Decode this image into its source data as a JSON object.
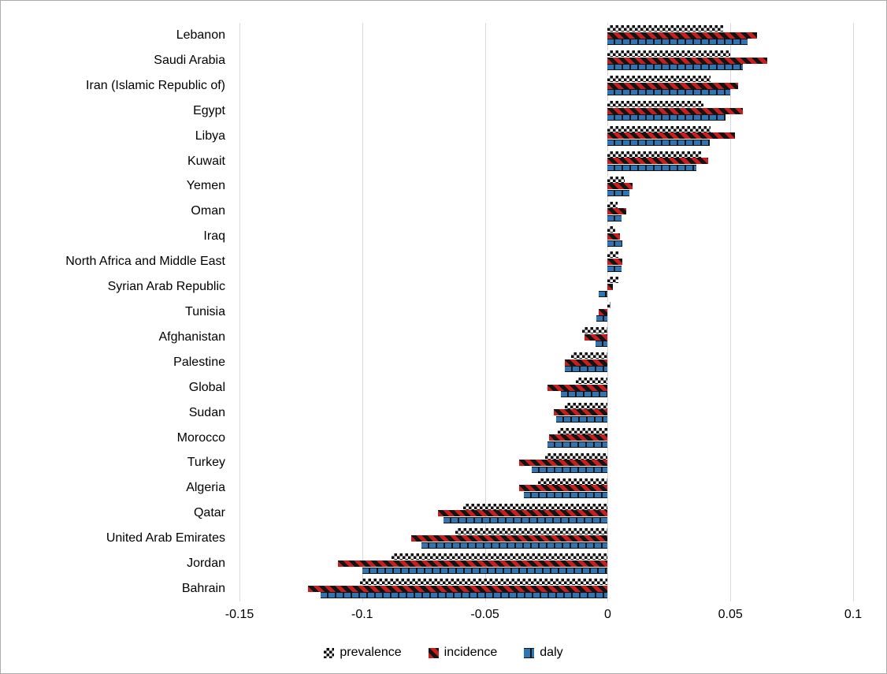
{
  "chart_data": {
    "type": "bar",
    "orientation": "horizontal",
    "title": "",
    "xlabel": "",
    "ylabel": "",
    "xlim": [
      -0.15,
      0.1
    ],
    "xticks": [
      -0.15,
      -0.1,
      -0.05,
      0,
      0.05,
      0.1
    ],
    "xtick_labels": [
      "-0.15",
      "-0.1",
      "-0.05",
      "0",
      "0.05",
      "0.1"
    ],
    "grid": "vertical",
    "legend_position": "bottom",
    "categories": [
      "Lebanon",
      "Saudi Arabia",
      "Iran (Islamic Republic of)",
      "Egypt",
      "Libya",
      "Kuwait",
      "Yemen",
      "Oman",
      "Iraq",
      "North Africa and Middle East",
      "Syrian Arab Republic",
      "Tunisia",
      "Afghanistan",
      "Palestine",
      "Global",
      "Sudan",
      "Morocco",
      "Turkey",
      "Algeria",
      "Qatar",
      "United Arab Emirates",
      "Jordan",
      "Bahrain"
    ],
    "series": [
      {
        "name": "prevalence",
        "pattern": "black-white-checkerboard",
        "color": "#000000",
        "values": [
          0.047,
          0.05,
          0.042,
          0.039,
          0.042,
          0.038,
          0.007,
          0.004,
          0.003,
          0.0045,
          0.0045,
          0.001,
          -0.0105,
          -0.015,
          -0.013,
          -0.0175,
          -0.0205,
          -0.0255,
          -0.0285,
          -0.059,
          -0.062,
          -0.088,
          -0.101
        ]
      },
      {
        "name": "incidence",
        "pattern": "red-black-diagonal-stripes",
        "color": "#c81e1e",
        "values": [
          0.061,
          0.065,
          0.053,
          0.055,
          0.052,
          0.041,
          0.01,
          0.0075,
          0.005,
          0.006,
          0.002,
          -0.0035,
          -0.0095,
          -0.0175,
          -0.0245,
          -0.022,
          -0.024,
          -0.036,
          -0.036,
          -0.069,
          -0.08,
          -0.11,
          -0.122
        ]
      },
      {
        "name": "daly",
        "pattern": "blue-vertical-bricks",
        "color": "#2e75b6",
        "values": [
          0.057,
          0.055,
          0.05,
          0.048,
          0.0415,
          0.036,
          0.009,
          0.0055,
          0.006,
          0.0055,
          -0.0035,
          -0.0045,
          -0.005,
          -0.0175,
          -0.019,
          -0.021,
          -0.0245,
          -0.031,
          -0.034,
          -0.067,
          -0.076,
          -0.1,
          -0.117
        ]
      }
    ],
    "legend": [
      "prevalence",
      "incidence",
      "daly"
    ],
    "gridline_color": "#d9d9d9",
    "border_color": "#ababab"
  }
}
